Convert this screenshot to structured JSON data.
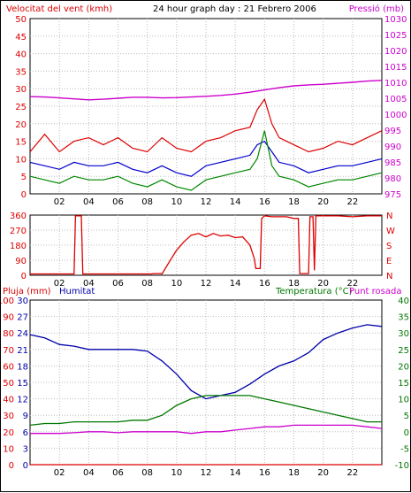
{
  "chart_data": [
    {
      "type": "line",
      "title": "24 hour graph day : 21 Febrero 2006",
      "ylabel_left": "Velocitat del vent (kmh)",
      "ylabel_right": "Pressió (mb)",
      "x_ticks": [
        "02",
        "04",
        "06",
        "08",
        "10",
        "12",
        "14",
        "16",
        "18",
        "20",
        "22"
      ],
      "ylim_left": [
        0,
        50
      ],
      "yticks_left": [
        "0",
        "5",
        "10",
        "15",
        "20",
        "25",
        "30",
        "35",
        "40",
        "45",
        "50"
      ],
      "ylim_right": [
        975,
        1030
      ],
      "yticks_right": [
        "975",
        "980",
        "985",
        "990",
        "995",
        "1000",
        "1005",
        "1010",
        "1015",
        "1020",
        "1025",
        "1030"
      ],
      "grid": true,
      "series": [
        {
          "name": "Pressió",
          "axis": "right",
          "color": "#cc00cc",
          "x": [
            0,
            1,
            2,
            3,
            4,
            5,
            6,
            7,
            8,
            9,
            10,
            11,
            12,
            13,
            14,
            15,
            16,
            17,
            18,
            19,
            20,
            21,
            22,
            23,
            24
          ],
          "values": [
            1005.5,
            1005.4,
            1005.1,
            1004.8,
            1004.5,
            1004.7,
            1005.0,
            1005.3,
            1005.3,
            1005.1,
            1005.2,
            1005.4,
            1005.6,
            1005.9,
            1006.3,
            1006.9,
            1007.6,
            1008.3,
            1008.9,
            1009.2,
            1009.4,
            1009.7,
            1010.0,
            1010.4,
            1010.6
          ]
        },
        {
          "name": "Velocitat ratxa",
          "axis": "left",
          "color": "#dd0000",
          "x": [
            0,
            1,
            2,
            3,
            4,
            5,
            6,
            7,
            8,
            9,
            10,
            11,
            12,
            13,
            14,
            15,
            15.5,
            16,
            16.5,
            17,
            18,
            19,
            20,
            21,
            22,
            23,
            24
          ],
          "values": [
            12,
            17,
            12,
            15,
            16,
            14,
            16,
            13,
            12,
            16,
            13,
            12,
            15,
            16,
            18,
            19,
            24,
            27,
            20,
            16,
            14,
            12,
            13,
            15,
            14,
            16,
            18
          ]
        },
        {
          "name": "Velocitat mitjana",
          "axis": "left",
          "color": "#0000cc",
          "x": [
            0,
            1,
            2,
            3,
            4,
            5,
            6,
            7,
            8,
            9,
            10,
            11,
            12,
            13,
            14,
            15,
            15.5,
            16,
            16.5,
            17,
            18,
            19,
            20,
            21,
            22,
            23,
            24
          ],
          "values": [
            9,
            8,
            7,
            9,
            8,
            8,
            9,
            7,
            6,
            8,
            6,
            5,
            8,
            9,
            10,
            11,
            14,
            15,
            12,
            9,
            8,
            6,
            7,
            8,
            8,
            9,
            10
          ]
        },
        {
          "name": "Velocitat mínima",
          "axis": "left",
          "color": "#008800",
          "x": [
            0,
            1,
            2,
            3,
            4,
            5,
            6,
            7,
            8,
            9,
            10,
            11,
            12,
            13,
            14,
            15,
            15.5,
            16,
            16.5,
            17,
            18,
            19,
            20,
            21,
            22,
            23,
            24
          ],
          "values": [
            5,
            4,
            3,
            5,
            4,
            4,
            5,
            3,
            2,
            4,
            2,
            1,
            4,
            5,
            6,
            7,
            10,
            18,
            8,
            5,
            4,
            2,
            3,
            4,
            4,
            5,
            6
          ]
        }
      ]
    },
    {
      "type": "line",
      "ylim": [
        0,
        360
      ],
      "yticks_left": [
        "0",
        "90",
        "180",
        "270",
        "360"
      ],
      "yticks_right": [
        "N",
        "E",
        "S",
        "W",
        "N"
      ],
      "x_ticks": [
        "02",
        "04",
        "06",
        "08",
        "10",
        "12",
        "14",
        "16",
        "18",
        "20",
        "22"
      ],
      "grid": true,
      "series": [
        {
          "name": "Direcció del vent",
          "color": "#dd0000",
          "x": [
            0,
            3.0,
            3.1,
            3.5,
            3.6,
            8.3,
            8.4,
            8.9,
            9.0,
            9.5,
            10.0,
            10.5,
            11.0,
            11.5,
            12.0,
            12.5,
            13.0,
            13.5,
            14.0,
            14.5,
            15.0,
            15.3,
            15.4,
            15.7,
            15.8,
            16.0,
            16.5,
            17.0,
            17.5,
            18.0,
            18.3,
            18.4,
            19.0,
            19.1,
            19.3,
            19.4,
            19.5,
            20.0,
            21.0,
            22.0,
            23.0,
            24.0
          ],
          "values": [
            8,
            8,
            355,
            355,
            8,
            8,
            10,
            10,
            8,
            80,
            150,
            200,
            240,
            250,
            230,
            250,
            235,
            240,
            225,
            230,
            180,
            100,
            40,
            40,
            340,
            355,
            350,
            350,
            350,
            340,
            340,
            10,
            10,
            350,
            350,
            30,
            355,
            355,
            355,
            350,
            355,
            355
          ]
        }
      ]
    },
    {
      "type": "line",
      "ylabel_left_1": "Pluja (mm)",
      "ylabel_left_2": "Humitat",
      "ylabel_right_1": "Temperatura (°C)",
      "ylabel_right_2": "Punt rosada",
      "ylim_humidity": [
        0,
        100
      ],
      "yticks_humidity": [
        "0",
        "10",
        "20",
        "30",
        "40",
        "50",
        "60",
        "70",
        "80",
        "90",
        "100"
      ],
      "ylim_rain": [
        0,
        30
      ],
      "yticks_rain": [
        "0",
        "3",
        "6",
        "9",
        "12",
        "15",
        "18",
        "21",
        "24",
        "27",
        "30"
      ],
      "ylim_temp": [
        -10,
        40
      ],
      "yticks_temp": [
        "-10",
        "-5",
        "0",
        "5",
        "10",
        "15",
        "20",
        "25",
        "30",
        "35",
        "40"
      ],
      "x_ticks": [
        "02",
        "04",
        "06",
        "08",
        "10",
        "12",
        "14",
        "16",
        "18",
        "20",
        "22"
      ],
      "grid": true,
      "series": [
        {
          "name": "Humitat",
          "axis": "humidity",
          "color": "#0000aa",
          "x": [
            0,
            1,
            2,
            3,
            4,
            5,
            6,
            7,
            8,
            9,
            10,
            11,
            12,
            13,
            14,
            15,
            16,
            17,
            18,
            19,
            20,
            21,
            22,
            23,
            24
          ],
          "values": [
            79,
            77,
            73,
            72,
            70,
            70,
            70,
            70,
            69,
            63,
            55,
            45,
            40,
            42,
            44,
            49,
            55,
            60,
            63,
            68,
            76,
            80,
            83,
            85,
            84
          ]
        },
        {
          "name": "Temperatura",
          "axis": "temp",
          "color": "#007700",
          "x": [
            0,
            1,
            2,
            3,
            4,
            5,
            6,
            7,
            8,
            9,
            10,
            11,
            12,
            13,
            14,
            15,
            16,
            17,
            18,
            19,
            20,
            21,
            22,
            23,
            24
          ],
          "values": [
            2,
            2.5,
            2.5,
            3,
            3,
            3,
            3,
            3.5,
            3.5,
            5,
            8,
            10,
            11,
            11,
            11,
            11,
            10,
            9,
            8,
            7,
            6,
            5,
            4,
            3,
            3
          ]
        },
        {
          "name": "Punt rosada",
          "axis": "temp",
          "color": "#cc00cc",
          "x": [
            0,
            1,
            2,
            3,
            4,
            5,
            6,
            7,
            8,
            9,
            10,
            11,
            12,
            13,
            14,
            15,
            16,
            17,
            18,
            19,
            20,
            21,
            22,
            23,
            24
          ],
          "values": [
            -0.5,
            -0.5,
            -0.5,
            -0.3,
            0,
            0,
            -0.3,
            0,
            0,
            0,
            0,
            -0.5,
            0,
            0,
            0.5,
            1,
            1.5,
            1.5,
            2,
            2,
            2,
            2,
            2,
            1.5,
            1
          ]
        },
        {
          "name": "Pluja",
          "axis": "rain",
          "color": "#dd0000",
          "x": [
            0,
            24
          ],
          "values": [
            0,
            0
          ]
        }
      ]
    }
  ]
}
